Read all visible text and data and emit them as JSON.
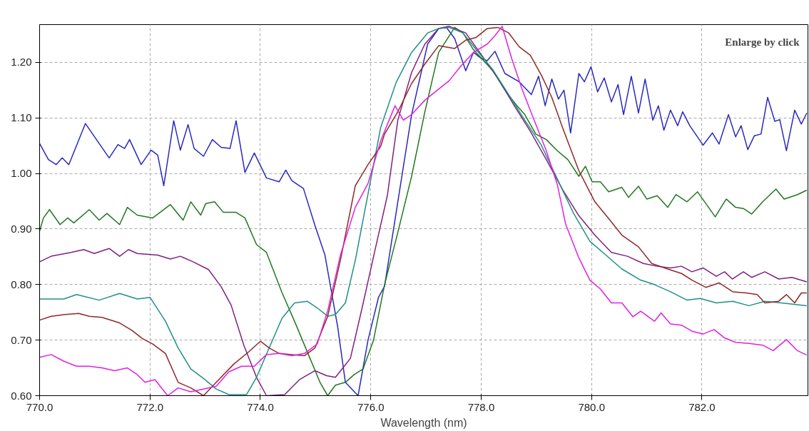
{
  "chart_data": {
    "type": "line",
    "xlabel": "Wavelength (nm)",
    "annotations": [
      "Enlarge by click"
    ],
    "grid": true,
    "marker": "none",
    "line_style": "solid",
    "xlim": [
      770,
      783.92
    ],
    "ylim": [
      0.6,
      1.268
    ],
    "xticks": [
      {
        "value": 770,
        "label": "770.0"
      },
      {
        "value": 772,
        "label": "772.0"
      },
      {
        "value": 774,
        "label": "774.0"
      },
      {
        "value": 776,
        "label": "776.0"
      },
      {
        "value": 778,
        "label": "778.0"
      },
      {
        "value": 780,
        "label": "780.0"
      },
      {
        "value": 782,
        "label": "782.0"
      }
    ],
    "yticks": [
      {
        "value": 0.6,
        "label": "0.60"
      },
      {
        "value": 0.7,
        "label": "0.70"
      },
      {
        "value": 0.8,
        "label": "0.80"
      },
      {
        "value": 0.9,
        "label": "0.90"
      },
      {
        "value": 1.0,
        "label": "1.00"
      },
      {
        "value": 1.1,
        "label": "1.10"
      },
      {
        "value": 1.2,
        "label": "1.20"
      }
    ],
    "series": [
      {
        "color": "#2828c0",
        "x": [
          770,
          770.16,
          770.3,
          770.41,
          770.53,
          770.83,
          771.26,
          771.42,
          771.54,
          771.63,
          771.84,
          772.02,
          772.14,
          772.25,
          772.43,
          772.55,
          772.69,
          772.8,
          772.97,
          773.13,
          773.29,
          773.45,
          773.56,
          773.72,
          773.89,
          774.11,
          774.34,
          774.46,
          774.57,
          774.78,
          774.99,
          775.17,
          775.4,
          775.54,
          775.77,
          775.95,
          776.14,
          776.25,
          776.49,
          776.74,
          777.03,
          777.23,
          777.37,
          777.52,
          777.72,
          777.86,
          777.99,
          778.11,
          778.25,
          778.43,
          778.69,
          778.91,
          779.04,
          779.16,
          779.28,
          779.4,
          779.5,
          779.62,
          779.77,
          779.87,
          779.99,
          780.11,
          780.23,
          780.36,
          780.48,
          780.58,
          780.72,
          780.85,
          780.97,
          781.11,
          781.21,
          781.31,
          781.43,
          781.56,
          781.65,
          781.78,
          782.02,
          782.19,
          782.31,
          782.48,
          782.61,
          782.71,
          782.83,
          782.95,
          783.07,
          783.19,
          783.32,
          783.41,
          783.53,
          783.68,
          783.8,
          783.9
        ],
        "values": [
          1.054,
          1.025,
          1.016,
          1.028,
          1.016,
          1.09,
          1.028,
          1.052,
          1.045,
          1.061,
          1.016,
          1.042,
          1.033,
          0.978,
          1.095,
          1.042,
          1.088,
          1.045,
          1.031,
          1.061,
          1.047,
          1.045,
          1.095,
          1.002,
          1.037,
          0.992,
          0.985,
          1.006,
          0.987,
          0.973,
          0.906,
          0.853,
          0.724,
          0.624,
          0.6,
          0.7,
          0.777,
          0.797,
          0.949,
          1.106,
          1.233,
          1.261,
          1.263,
          1.243,
          1.185,
          1.218,
          1.208,
          1.203,
          1.22,
          1.18,
          1.165,
          1.142,
          1.175,
          1.122,
          1.17,
          1.134,
          1.15,
          1.073,
          1.18,
          1.165,
          1.192,
          1.147,
          1.172,
          1.129,
          1.16,
          1.106,
          1.175,
          1.109,
          1.17,
          1.096,
          1.122,
          1.078,
          1.114,
          1.086,
          1.111,
          1.086,
          1.051,
          1.073,
          1.053,
          1.106,
          1.066,
          1.086,
          1.043,
          1.068,
          1.071,
          1.137,
          1.094,
          1.097,
          1.041,
          1.114,
          1.089,
          1.109
        ]
      },
      {
        "color": "#207820",
        "x": [
          770,
          770.07,
          770.18,
          770.37,
          770.51,
          770.62,
          770.9,
          771.08,
          771.22,
          771.45,
          771.59,
          771.77,
          772.05,
          772.37,
          772.6,
          772.74,
          772.92,
          773.01,
          773.17,
          773.33,
          773.56,
          773.72,
          773.93,
          774.11,
          774.39,
          774.64,
          774.9,
          775.08,
          775.22,
          775.36,
          775.54,
          775.7,
          775.86,
          776.05,
          776.25,
          776.49,
          776.74,
          776.98,
          777.23,
          777.52,
          777.67,
          777.86,
          778.21,
          778.45,
          778.65,
          778.79,
          778.99,
          779.18,
          779.38,
          779.57,
          779.77,
          779.89,
          780.01,
          780.16,
          780.31,
          780.55,
          780.67,
          780.85,
          781.0,
          781.19,
          781.38,
          781.53,
          781.73,
          781.92,
          782.12,
          782.24,
          782.44,
          782.61,
          782.75,
          782.9,
          783.1,
          783.34,
          783.49,
          783.73,
          783.9
        ],
        "values": [
          0.896,
          0.92,
          0.935,
          0.908,
          0.92,
          0.911,
          0.935,
          0.916,
          0.928,
          0.908,
          0.939,
          0.925,
          0.92,
          0.944,
          0.916,
          0.949,
          0.925,
          0.946,
          0.949,
          0.93,
          0.93,
          0.92,
          0.872,
          0.858,
          0.786,
          0.729,
          0.667,
          0.624,
          0.6,
          0.619,
          0.624,
          0.638,
          0.648,
          0.7,
          0.8,
          0.894,
          0.995,
          1.111,
          1.218,
          1.263,
          1.253,
          1.223,
          1.185,
          1.147,
          1.122,
          1.106,
          1.071,
          1.061,
          1.041,
          1.025,
          0.995,
          1.013,
          0.985,
          0.985,
          0.967,
          0.975,
          0.957,
          0.977,
          0.954,
          0.96,
          0.939,
          0.962,
          0.949,
          0.967,
          0.939,
          0.922,
          0.954,
          0.939,
          0.937,
          0.927,
          0.949,
          0.972,
          0.954,
          0.962,
          0.97
        ]
      },
      {
        "color": "#802080",
        "x": [
          770,
          770.21,
          770.57,
          770.8,
          770.99,
          771.26,
          771.45,
          771.61,
          771.77,
          772.14,
          772.37,
          772.55,
          772.78,
          773.06,
          773.29,
          773.47,
          773.7,
          773.93,
          774.11,
          774.44,
          774.71,
          774.99,
          775.2,
          775.36,
          775.63,
          775.82,
          776.09,
          776.3,
          776.49,
          776.74,
          776.98,
          777.23,
          777.42,
          777.72,
          778.01,
          778.3,
          778.6,
          778.89,
          779.18,
          779.48,
          779.77,
          780.06,
          780.36,
          780.65,
          780.94,
          781.19,
          781.43,
          781.63,
          781.82,
          782.02,
          782.26,
          782.41,
          782.55,
          782.75,
          782.9,
          783.14,
          783.39,
          783.63,
          783.9
        ],
        "values": [
          0.841,
          0.851,
          0.858,
          0.863,
          0.856,
          0.865,
          0.851,
          0.863,
          0.856,
          0.853,
          0.846,
          0.851,
          0.841,
          0.827,
          0.796,
          0.763,
          0.691,
          0.633,
          0.6,
          0.602,
          0.629,
          0.645,
          0.636,
          0.633,
          0.667,
          0.748,
          0.868,
          0.96,
          1.096,
          1.182,
          1.233,
          1.261,
          1.265,
          1.253,
          1.213,
          1.172,
          1.122,
          1.076,
          1.025,
          0.97,
          0.924,
          0.889,
          0.858,
          0.851,
          0.838,
          0.833,
          0.83,
          0.833,
          0.823,
          0.83,
          0.815,
          0.823,
          0.81,
          0.823,
          0.813,
          0.823,
          0.81,
          0.813,
          0.805
        ]
      },
      {
        "color": "#209088",
        "x": [
          770,
          770.44,
          770.67,
          771.08,
          771.45,
          771.77,
          772.0,
          772.28,
          772.51,
          772.74,
          772.97,
          773.2,
          773.43,
          773.75,
          773.93,
          774.16,
          774.39,
          774.62,
          774.85,
          775.03,
          775.22,
          775.36,
          775.54,
          775.72,
          775.95,
          776.18,
          776.46,
          776.74,
          777.03,
          777.23,
          777.42,
          777.67,
          777.91,
          778.21,
          778.5,
          778.79,
          779.09,
          779.38,
          779.67,
          779.97,
          780.26,
          780.55,
          780.89,
          781.14,
          781.43,
          781.73,
          781.97,
          782.26,
          782.56,
          782.85,
          783.14,
          783.44,
          783.9
        ],
        "values": [
          0.774,
          0.774,
          0.782,
          0.772,
          0.784,
          0.774,
          0.777,
          0.734,
          0.686,
          0.648,
          0.631,
          0.612,
          0.602,
          0.602,
          0.633,
          0.686,
          0.739,
          0.767,
          0.77,
          0.758,
          0.743,
          0.746,
          0.767,
          0.844,
          0.963,
          1.083,
          1.164,
          1.218,
          1.253,
          1.261,
          1.263,
          1.253,
          1.223,
          1.187,
          1.142,
          1.096,
          1.051,
          0.99,
          0.929,
          0.878,
          0.853,
          0.828,
          0.808,
          0.8,
          0.787,
          0.772,
          0.775,
          0.767,
          0.77,
          0.762,
          0.77,
          0.767,
          0.762
        ]
      },
      {
        "color": "#902828",
        "x": [
          770,
          770.21,
          770.46,
          770.71,
          770.9,
          771.13,
          771.45,
          771.68,
          771.86,
          772.05,
          772.28,
          772.51,
          772.74,
          772.97,
          773.2,
          773.52,
          773.79,
          774.0,
          774.16,
          774.34,
          774.57,
          774.8,
          774.99,
          775.22,
          775.45,
          775.72,
          775.95,
          776.18,
          776.25,
          776.49,
          776.74,
          776.98,
          777.23,
          777.52,
          777.72,
          777.91,
          778.11,
          778.3,
          778.5,
          778.69,
          778.89,
          779.09,
          779.28,
          779.48,
          779.77,
          780.06,
          780.31,
          780.55,
          780.85,
          781.09,
          781.38,
          781.63,
          781.82,
          782.07,
          782.31,
          782.56,
          782.8,
          783.0,
          783.14,
          783.39,
          783.53,
          783.68,
          783.8,
          783.9
        ],
        "values": [
          0.736,
          0.743,
          0.746,
          0.748,
          0.743,
          0.741,
          0.731,
          0.717,
          0.703,
          0.693,
          0.676,
          0.624,
          0.614,
          0.6,
          0.624,
          0.657,
          0.679,
          0.698,
          0.686,
          0.676,
          0.674,
          0.672,
          0.686,
          0.743,
          0.844,
          0.978,
          1.016,
          1.049,
          1.071,
          1.111,
          1.162,
          1.197,
          1.23,
          1.225,
          1.24,
          1.245,
          1.261,
          1.263,
          1.253,
          1.228,
          1.213,
          1.177,
          1.137,
          1.081,
          1.005,
          0.949,
          0.919,
          0.889,
          0.868,
          0.838,
          0.828,
          0.82,
          0.808,
          0.795,
          0.803,
          0.787,
          0.785,
          0.782,
          0.767,
          0.77,
          0.782,
          0.767,
          0.785,
          0.785
        ]
      },
      {
        "color": "#e020e0",
        "x": [
          770,
          770.21,
          770.44,
          770.67,
          770.9,
          771.13,
          771.36,
          771.59,
          771.77,
          771.91,
          772.09,
          772.32,
          772.51,
          772.74,
          772.97,
          773.2,
          773.43,
          773.66,
          773.89,
          774.11,
          774.34,
          774.57,
          774.8,
          775.03,
          775.22,
          775.45,
          775.72,
          775.95,
          776.18,
          776.44,
          776.59,
          776.74,
          776.98,
          777.23,
          777.42,
          777.62,
          777.86,
          778.11,
          778.25,
          778.38,
          778.55,
          778.74,
          778.94,
          779.18,
          779.38,
          779.53,
          779.77,
          779.97,
          780.16,
          780.36,
          780.55,
          780.75,
          780.89,
          781.14,
          781.26,
          781.43,
          781.63,
          781.82,
          782.02,
          782.22,
          782.41,
          782.61,
          782.85,
          783.1,
          783.29,
          783.53,
          783.73,
          783.9
        ],
        "values": [
          0.669,
          0.674,
          0.662,
          0.653,
          0.653,
          0.65,
          0.645,
          0.65,
          0.638,
          0.624,
          0.629,
          0.6,
          0.614,
          0.607,
          0.612,
          0.617,
          0.643,
          0.653,
          0.653,
          0.674,
          0.676,
          0.672,
          0.676,
          0.693,
          0.753,
          0.853,
          0.939,
          0.982,
          1.059,
          1.122,
          1.096,
          1.106,
          1.132,
          1.152,
          1.167,
          1.192,
          1.218,
          1.233,
          1.248,
          1.265,
          1.208,
          1.152,
          1.101,
          1.041,
          0.98,
          0.909,
          0.848,
          0.808,
          0.792,
          0.767,
          0.767,
          0.742,
          0.752,
          0.734,
          0.749,
          0.729,
          0.727,
          0.716,
          0.711,
          0.719,
          0.704,
          0.696,
          0.694,
          0.691,
          0.681,
          0.701,
          0.681,
          0.673
        ]
      }
    ]
  }
}
